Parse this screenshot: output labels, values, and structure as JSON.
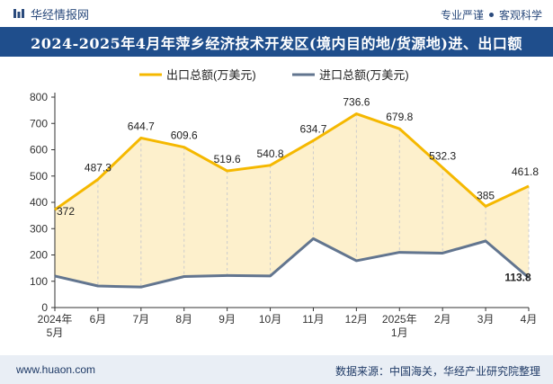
{
  "header": {
    "brand": "华经情报网",
    "tag1": "专业严谨",
    "tag2": "客观科学"
  },
  "footer": {
    "website": "www.huaon.com",
    "source": "数据来源：中国海关，华经产业研究院整理"
  },
  "colors": {
    "export": "#f5b800",
    "import": "#62758f",
    "fill": "#fdf0cc",
    "title_bg": "#1f4e8c"
  },
  "chart_data": {
    "type": "line",
    "title": "2024-2025年4月年萍乡经济技术开发区(境内目的地/货源地)进、出口额",
    "categories": [
      [
        "2024年",
        "5月"
      ],
      [
        "6月"
      ],
      [
        "7月"
      ],
      [
        "8月"
      ],
      [
        "9月"
      ],
      [
        "10月"
      ],
      [
        "11月"
      ],
      [
        "12月"
      ],
      [
        "2025年",
        "1月"
      ],
      [
        "2月"
      ],
      [
        "3月"
      ],
      [
        "4月"
      ]
    ],
    "ylim": [
      0,
      800
    ],
    "yticks": [
      0,
      100,
      200,
      300,
      400,
      500,
      600,
      700,
      800
    ],
    "legend_position": "top",
    "series": [
      {
        "name": "出口总额(万美元)",
        "values": [
          372,
          487.3,
          644.7,
          609.6,
          519.6,
          540.8,
          634.7,
          736.6,
          679.8,
          532.3,
          385,
          461.8
        ],
        "labels": [
          "372",
          "487.3",
          "644.7",
          "609.6",
          "519.6",
          "540.8",
          "634.7",
          "736.6",
          "679.8",
          "532.3",
          "385",
          "461.8"
        ]
      },
      {
        "name": "进口总额(万美元)",
        "values": [
          120,
          82,
          78,
          118,
          122,
          120,
          262,
          178,
          210,
          207,
          253,
          113.8
        ],
        "labels": [
          "",
          "",
          "",
          "",
          "",
          "",
          "",
          "",
          "",
          "",
          "",
          "113.8"
        ]
      }
    ]
  }
}
